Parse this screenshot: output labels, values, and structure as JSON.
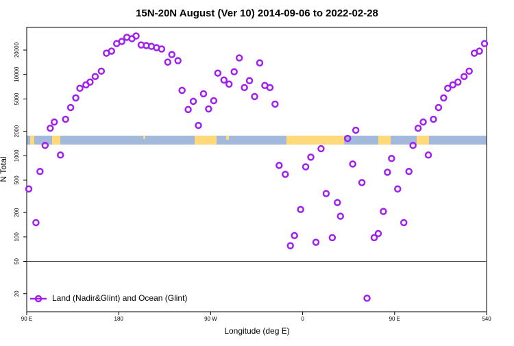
{
  "chart_data": {
    "type": "scatter",
    "title": "15N-20N August (Ver 10)   2014-09-06 to 2022-02-28",
    "x_label": "Longitude (deg E)",
    "y_label": "N Total",
    "log_y": true,
    "xlim": [
      90,
      540
    ],
    "xticks": [
      {
        "value": 90,
        "label": "90 E"
      },
      180,
      {
        "value": 270,
        "label": "90 W"
      },
      {
        "value": 360,
        "label": "0"
      },
      {
        "value": 450,
        "label": "90 E"
      },
      540
    ],
    "ylim": [
      12,
      38000
    ],
    "yticks": [
      20,
      50,
      100,
      200,
      500,
      1000,
      2000,
      5000,
      10000,
      20000
    ],
    "hline": 50,
    "legend": "bottom-left",
    "series": [
      {
        "name": "Land (Nadir&Glint) and Ocean (Glint)",
        "color": "#a020f0",
        "x": [
          92,
          99,
          103,
          108,
          113,
          117,
          123,
          128,
          133,
          138,
          142,
          148,
          152,
          157,
          163,
          168,
          173,
          178,
          183,
          188,
          193,
          197,
          202,
          207,
          212,
          217,
          222,
          228,
          232,
          238,
          242,
          248,
          253,
          258,
          263,
          268,
          273,
          277,
          283,
          288,
          293,
          298,
          303,
          308,
          313,
          318,
          323,
          328,
          333,
          337,
          343,
          348,
          352,
          358,
          363,
          368,
          373,
          378,
          383,
          389,
          394,
          397,
          404,
          409,
          412,
          418,
          423,
          430,
          434,
          439,
          443,
          447,
          453,
          459,
          464,
          468,
          473,
          478,
          483,
          488,
          493,
          498,
          502,
          507,
          512,
          518,
          523,
          528,
          533,
          538
        ],
        "values": [
          390,
          150,
          640,
          1340,
          2180,
          2600,
          1020,
          2810,
          3920,
          5150,
          6770,
          7460,
          8070,
          9440,
          11000,
          18300,
          19400,
          24000,
          25500,
          28700,
          27600,
          29800,
          23100,
          22700,
          22200,
          21400,
          20600,
          14200,
          17600,
          14800,
          6380,
          3700,
          4670,
          2360,
          5790,
          3770,
          4760,
          10400,
          8550,
          7610,
          10800,
          16000,
          6900,
          8390,
          5350,
          13900,
          7320,
          6900,
          4320,
          760,
          590,
          78,
          104,
          218,
          730,
          960,
          86,
          1220,
          342,
          98,
          265,
          180,
          1630,
          790,
          2060,
          467,
          17.6,
          98,
          110,
          206,
          626,
          925,
          390,
          150,
          640,
          1340,
          2180,
          2600,
          1020,
          2810,
          3920,
          5150,
          6770,
          7460,
          8070,
          9440,
          11000,
          18300,
          19400,
          24000
        ]
      }
    ]
  }
}
